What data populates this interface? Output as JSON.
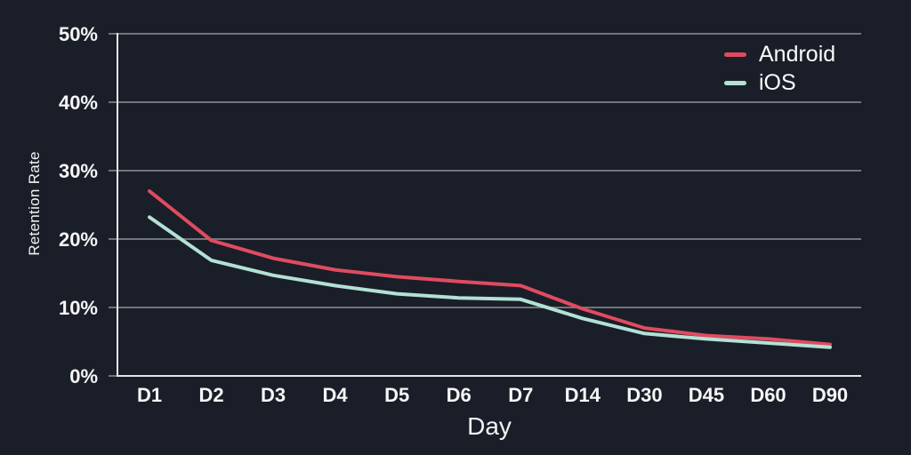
{
  "chart_data": {
    "type": "line",
    "title": "",
    "categories": [
      "D1",
      "D2",
      "D3",
      "D4",
      "D5",
      "D6",
      "D7",
      "D14",
      "D30",
      "D45",
      "D60",
      "D90"
    ],
    "series": [
      {
        "name": "Android",
        "color": "#e04b60",
        "values": [
          27.0,
          19.8,
          17.2,
          15.5,
          14.5,
          13.8,
          13.2,
          9.8,
          7.0,
          5.9,
          5.4,
          4.6
        ]
      },
      {
        "name": "iOS",
        "color": "#b2e1d5",
        "values": [
          23.2,
          16.9,
          14.7,
          13.2,
          12.0,
          11.4,
          11.2,
          8.4,
          6.2,
          5.4,
          4.8,
          4.2
        ]
      }
    ],
    "xlabel": "Day",
    "ylabel": "Retention Rate",
    "ylim": [
      0,
      50
    ],
    "yticks": [
      {
        "value": 0,
        "label": "0%"
      },
      {
        "value": 10,
        "label": "10%"
      },
      {
        "value": 20,
        "label": "20%"
      },
      {
        "value": 30,
        "label": "30%"
      },
      {
        "value": 40,
        "label": "40%"
      },
      {
        "value": 50,
        "label": "50%"
      }
    ],
    "grid": true,
    "legend_position": "top-right",
    "colors": {
      "background": "#1a1e28",
      "gridline": "#70747c",
      "axis": "#e4e5e7",
      "tick_text": "#f6f6f7",
      "label_text": "#f2f2f3"
    }
  }
}
